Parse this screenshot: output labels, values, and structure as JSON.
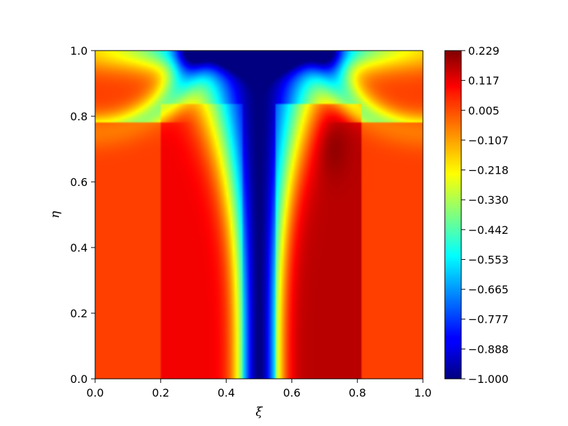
{
  "chart_data": {
    "type": "heatmap",
    "title": "",
    "xlabel": "ξ",
    "ylabel": "η",
    "xlim": [
      0.0,
      1.0
    ],
    "ylim": [
      0.0,
      1.0
    ],
    "x_ticks": [
      "0.0",
      "0.2",
      "0.4",
      "0.6",
      "0.8",
      "1.0"
    ],
    "y_ticks": [
      "0.0",
      "0.2",
      "0.4",
      "0.6",
      "0.8",
      "1.0"
    ],
    "colormap": "jet",
    "value_range": [
      -1.0,
      0.229
    ],
    "colorbar_ticks": [
      "0.229",
      "0.117",
      "0.005",
      "−0.107",
      "−0.218",
      "−0.330",
      "−0.442",
      "−0.553",
      "−0.665",
      "−0.777",
      "−0.888",
      "−1.000"
    ],
    "grid": false
  }
}
